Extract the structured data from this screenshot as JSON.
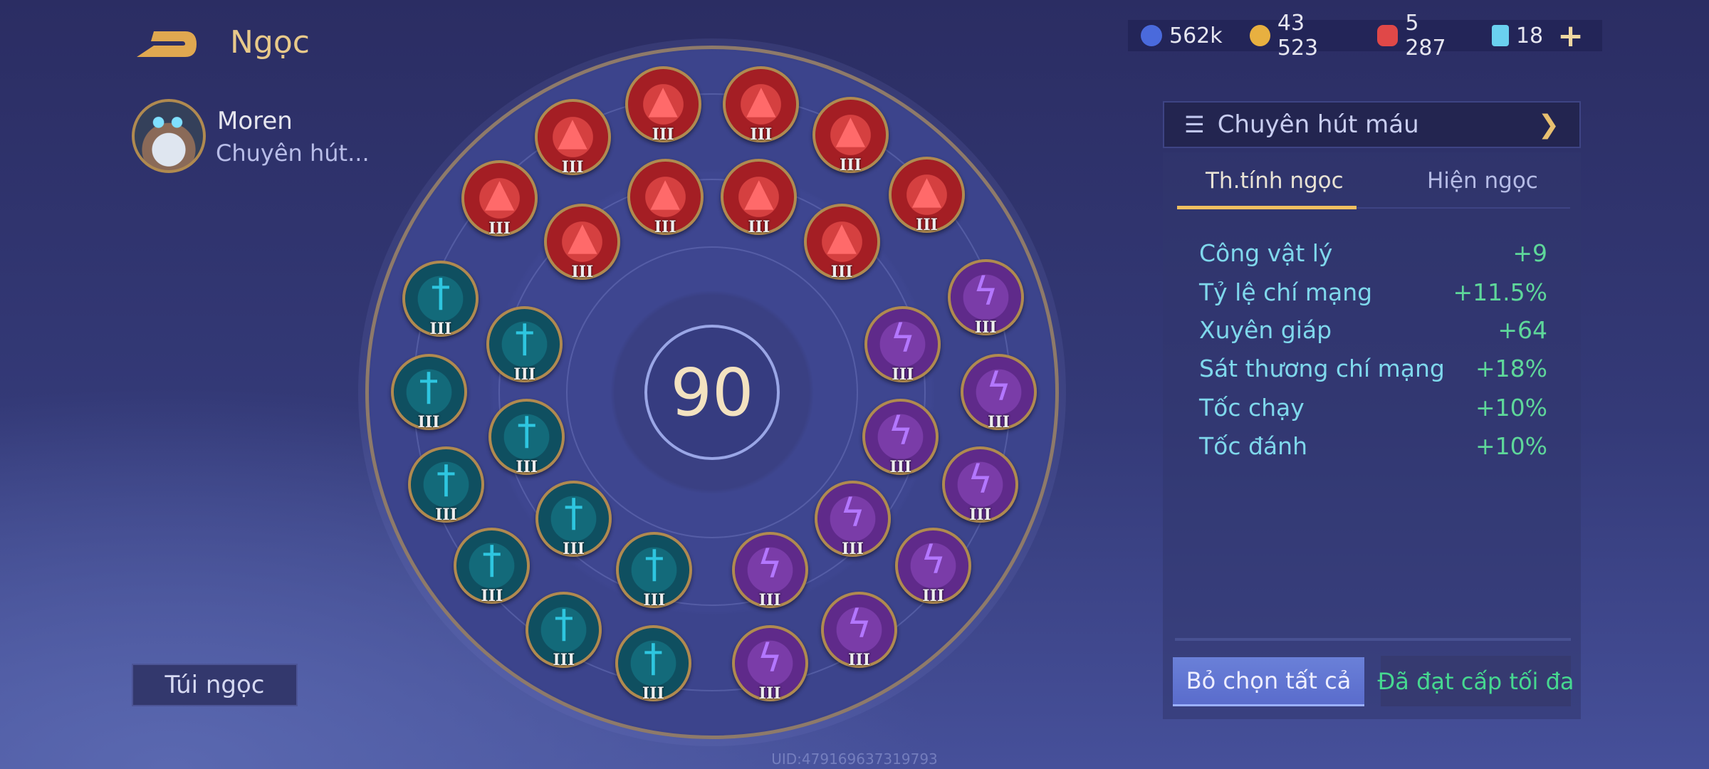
{
  "header": {
    "title": "Ngọc",
    "back_icon": "back-arrow-icon"
  },
  "hero": {
    "name": "Moren",
    "preset_short": "Chuyên hút..."
  },
  "bag_button": "Túi ngọc",
  "board": {
    "level": "90",
    "level_label": "III",
    "groups": [
      {
        "type": "red",
        "icon": "claw-icon",
        "count": 10
      },
      {
        "type": "teal",
        "icon": "sword-icon",
        "count": 10
      },
      {
        "type": "purple",
        "icon": "lightning-icon",
        "count": 10
      }
    ]
  },
  "currency": [
    {
      "icon": "blue-coin-icon",
      "value": "562k",
      "color": "#4a6adc"
    },
    {
      "icon": "gold-coin-icon",
      "value": "43 523",
      "color": "#e8b040"
    },
    {
      "icon": "red-gem-icon",
      "value": "5 287",
      "color": "#e04848"
    },
    {
      "icon": "card-icon",
      "value": "18",
      "color": "#6ad0f0"
    }
  ],
  "plus_label": "+",
  "panel": {
    "preset": "Chuyên hút máu",
    "tabs": [
      "Th.tính ngọc",
      "Hiện ngọc"
    ],
    "stats": [
      {
        "label": "Công vật lý",
        "value": "+9"
      },
      {
        "label": "Tỷ lệ chí mạng",
        "value": "+11.5%"
      },
      {
        "label": "Xuyên giáp",
        "value": "+64"
      },
      {
        "label": "Sát thương chí mạng",
        "value": "+18%"
      },
      {
        "label": "Tốc chạy",
        "value": "+10%"
      },
      {
        "label": "Tốc đánh",
        "value": "+10%"
      }
    ],
    "deselect_button": "Bỏ chọn tất cả",
    "max_level_button": "Đã đạt cấp tối đa"
  },
  "uid": "UID:479169637319793",
  "colors": {
    "accent": "#e8c98a",
    "stat_value": "#5ed79a",
    "stat_label": "#7fd8ec"
  }
}
